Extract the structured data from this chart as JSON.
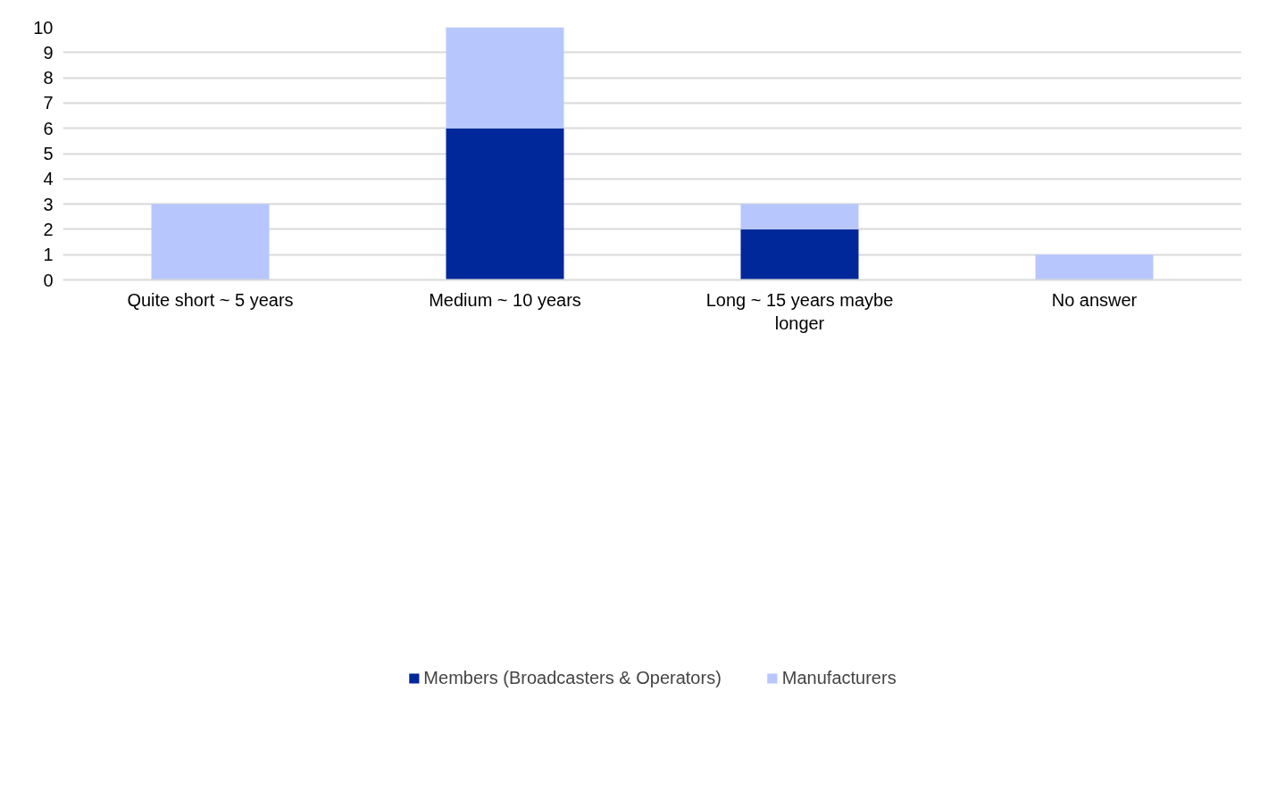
{
  "chart_data": {
    "type": "bar",
    "stacked": true,
    "categories": [
      "Quite short ~ 5 years",
      "Medium ~ 10 years",
      "Long ~ 15 years maybe longer",
      "No answer"
    ],
    "series": [
      {
        "name": "Members (Broadcasters & Operators)",
        "color": "#00289a",
        "values": [
          0,
          6,
          2,
          0
        ]
      },
      {
        "name": "Manufacturers",
        "color": "#b7c7fd",
        "values": [
          3,
          4,
          1,
          1
        ]
      }
    ],
    "ylim": [
      0,
      10
    ],
    "yticks": [
      0,
      1,
      2,
      3,
      4,
      5,
      6,
      7,
      8,
      9,
      10
    ],
    "grid": "y",
    "legend": "bottom"
  }
}
